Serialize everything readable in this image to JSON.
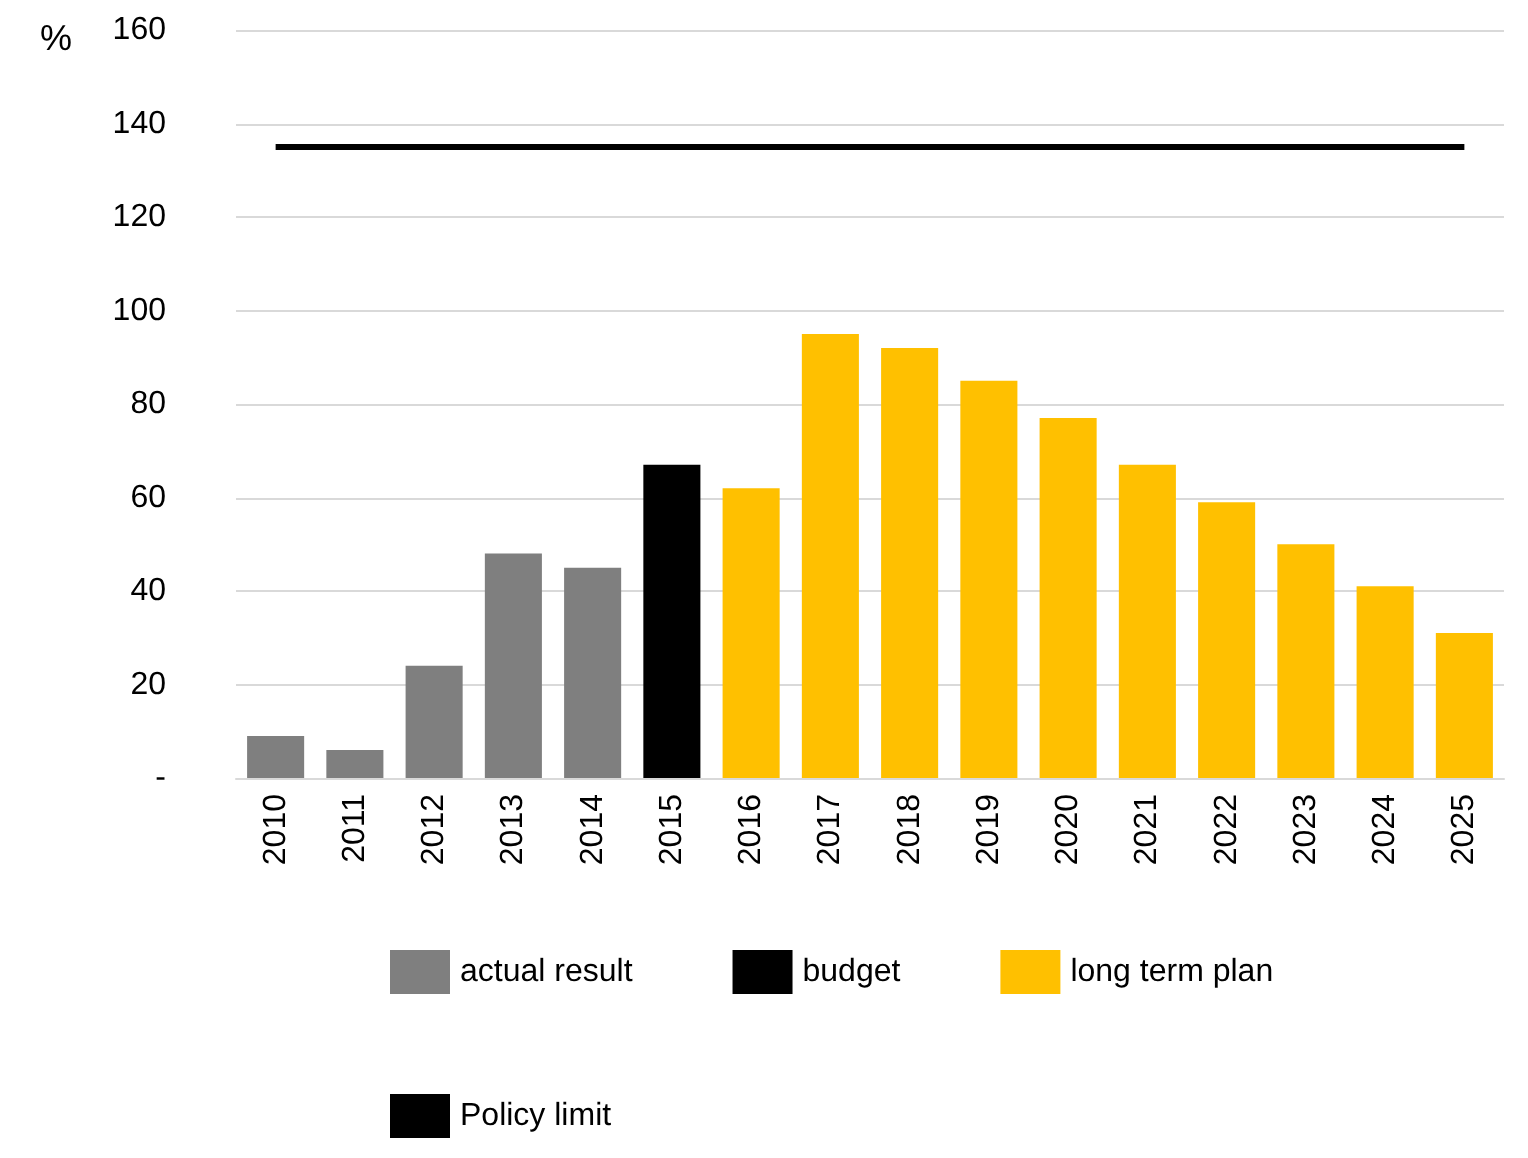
{
  "chart_data": {
    "type": "bar",
    "ylabel": "%",
    "categories": [
      "2010",
      "2011",
      "2012",
      "2013",
      "2014",
      "2015",
      "2016",
      "2017",
      "2018",
      "2019",
      "2020",
      "2021",
      "2022",
      "2023",
      "2024",
      "2025"
    ],
    "series": [
      {
        "name": "actual result",
        "color": "#7f7f7f",
        "values": [
          9,
          6,
          24,
          48,
          45,
          null,
          null,
          null,
          null,
          null,
          null,
          null,
          null,
          null,
          null,
          null
        ]
      },
      {
        "name": "budget",
        "color": "#000000",
        "values": [
          null,
          null,
          null,
          null,
          null,
          67,
          null,
          null,
          null,
          null,
          null,
          null,
          null,
          null,
          null,
          null
        ]
      },
      {
        "name": "long term plan",
        "color": "#ffc000",
        "values": [
          null,
          null,
          null,
          null,
          null,
          null,
          62,
          95,
          92,
          85,
          77,
          67,
          59,
          50,
          41,
          31
        ]
      },
      {
        "name": "Policy limit",
        "type": "line",
        "color": "#000000",
        "marker": "none",
        "values": [
          135,
          135,
          135,
          135,
          135,
          135,
          135,
          135,
          135,
          135,
          135,
          135,
          135,
          135,
          135,
          135
        ]
      }
    ],
    "ylim": [
      0,
      160
    ],
    "yticks": [
      {
        "value": 0,
        "label": "-"
      },
      20,
      40,
      60,
      80,
      100,
      120,
      140,
      160
    ],
    "grid": "y",
    "legend": "bottom"
  }
}
